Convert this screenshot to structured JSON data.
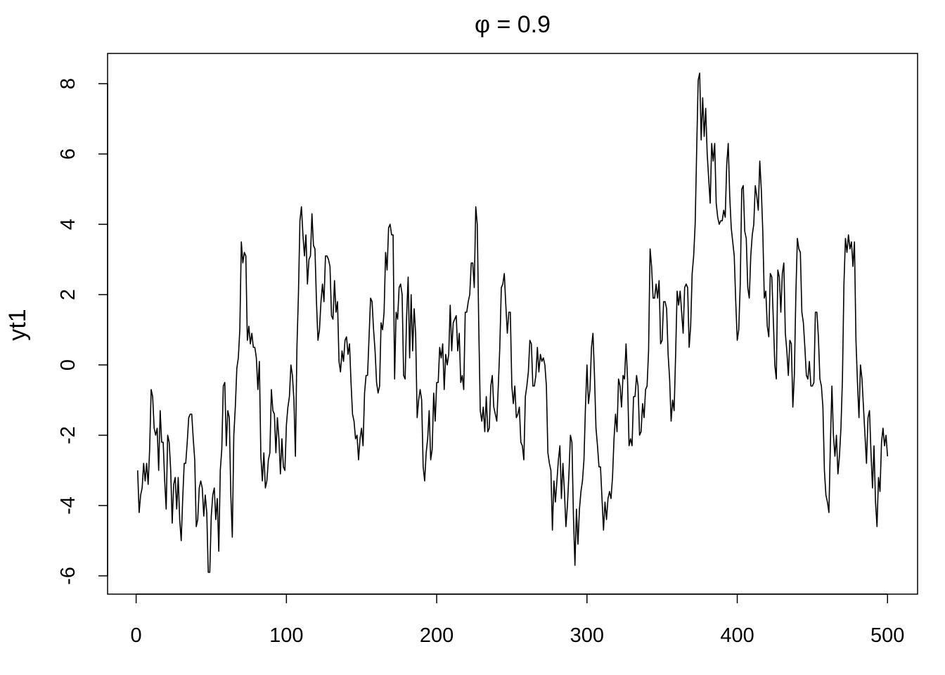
{
  "chart_data": {
    "type": "line",
    "title": "φ = 0.9",
    "y_label": "yt1",
    "color": "#000000",
    "xlim": [
      -19,
      520
    ],
    "ylim": [
      -6.52,
      8.86
    ],
    "xticks": [
      0,
      100,
      200,
      300,
      400,
      500
    ],
    "yticks": [
      -6,
      -4,
      -2,
      0,
      2,
      4,
      6,
      8
    ],
    "x": [
      1,
      2,
      3,
      4,
      5,
      6,
      7,
      8,
      9,
      10,
      11,
      12,
      13,
      14,
      15,
      16,
      17,
      18,
      19,
      20,
      21,
      22,
      23,
      24,
      25,
      26,
      27,
      28,
      29,
      30,
      31,
      32,
      33,
      34,
      35,
      36,
      37,
      38,
      39,
      40,
      41,
      42,
      43,
      44,
      45,
      46,
      47,
      48,
      49,
      50,
      51,
      52,
      53,
      54,
      55,
      56,
      57,
      58,
      59,
      60,
      61,
      62,
      63,
      64,
      65,
      66,
      67,
      68,
      69,
      70,
      71,
      72,
      73,
      74,
      75,
      76,
      77,
      78,
      79,
      80,
      81,
      82,
      83,
      84,
      85,
      86,
      87,
      88,
      89,
      90,
      91,
      92,
      93,
      94,
      95,
      96,
      97,
      98,
      99,
      100,
      101,
      102,
      103,
      104,
      105,
      106,
      107,
      108,
      109,
      110,
      111,
      112,
      113,
      114,
      115,
      116,
      117,
      118,
      119,
      120,
      121,
      122,
      123,
      124,
      125,
      126,
      127,
      128,
      129,
      130,
      131,
      132,
      133,
      134,
      135,
      136,
      137,
      138,
      139,
      140,
      141,
      142,
      143,
      144,
      145,
      146,
      147,
      148,
      149,
      150,
      151,
      152,
      153,
      154,
      155,
      156,
      157,
      158,
      159,
      160,
      161,
      162,
      163,
      164,
      165,
      166,
      167,
      168,
      169,
      170,
      171,
      172,
      173,
      174,
      175,
      176,
      177,
      178,
      179,
      180,
      181,
      182,
      183,
      184,
      185,
      186,
      187,
      188,
      189,
      190,
      191,
      192,
      193,
      194,
      195,
      196,
      197,
      198,
      199,
      200,
      201,
      202,
      203,
      204,
      205,
      206,
      207,
      208,
      209,
      210,
      211,
      212,
      213,
      214,
      215,
      216,
      217,
      218,
      219,
      220,
      221,
      222,
      223,
      224,
      225,
      226,
      227,
      228,
      229,
      230,
      231,
      232,
      233,
      234,
      235,
      236,
      237,
      238,
      239,
      240,
      241,
      242,
      243,
      244,
      245,
      246,
      247,
      248,
      249,
      250,
      251,
      252,
      253,
      254,
      255,
      256,
      257,
      258,
      259,
      260,
      261,
      262,
      263,
      264,
      265,
      266,
      267,
      268,
      269,
      270,
      271,
      272,
      273,
      274,
      275,
      276,
      277,
      278,
      279,
      280,
      281,
      282,
      283,
      284,
      285,
      286,
      287,
      288,
      289,
      290,
      291,
      292,
      293,
      294,
      295,
      296,
      297,
      298,
      299,
      300,
      301,
      302,
      303,
      304,
      305,
      306,
      307,
      308,
      309,
      310,
      311,
      312,
      313,
      314,
      315,
      316,
      317,
      318,
      319,
      320,
      321,
      322,
      323,
      324,
      325,
      326,
      327,
      328,
      329,
      330,
      331,
      332,
      333,
      334,
      335,
      336,
      337,
      338,
      339,
      340,
      341,
      342,
      343,
      344,
      345,
      346,
      347,
      348,
      349,
      350,
      351,
      352,
      353,
      354,
      355,
      356,
      357,
      358,
      359,
      360,
      361,
      362,
      363,
      364,
      365,
      366,
      367,
      368,
      369,
      370,
      371,
      372,
      373,
      374,
      375,
      376,
      377,
      378,
      379,
      380,
      381,
      382,
      383,
      384,
      385,
      386,
      387,
      388,
      389,
      390,
      391,
      392,
      393,
      394,
      395,
      396,
      397,
      398,
      399,
      400,
      401,
      402,
      403,
      404,
      405,
      406,
      407,
      408,
      409,
      410,
      411,
      412,
      413,
      414,
      415,
      416,
      417,
      418,
      419,
      420,
      421,
      422,
      423,
      424,
      425,
      426,
      427,
      428,
      429,
      430,
      431,
      432,
      433,
      434,
      435,
      436,
      437,
      438,
      439,
      440,
      441,
      442,
      443,
      444,
      445,
      446,
      447,
      448,
      449,
      450,
      451,
      452,
      453,
      454,
      455,
      456,
      457,
      458,
      459,
      460,
      461,
      462,
      463,
      464,
      465,
      466,
      467,
      468,
      469,
      470,
      471,
      472,
      473,
      474,
      475,
      476,
      477,
      478,
      479,
      480,
      481,
      482,
      483,
      484,
      485,
      486,
      487,
      488,
      489,
      490,
      491,
      492,
      493,
      494,
      495,
      496,
      497,
      498,
      499,
      500
    ],
    "values": [
      -3.0,
      -4.2,
      -3.7,
      -3.5,
      -2.8,
      -3.3,
      -2.8,
      -3.4,
      -2.4,
      -0.7,
      -0.9,
      -1.8,
      -2.0,
      -1.8,
      -3.0,
      -1.3,
      -2.2,
      -2.2,
      -3.3,
      -4.1,
      -2.0,
      -2.2,
      -3.0,
      -4.5,
      -3.4,
      -3.2,
      -4.1,
      -3.2,
      -4.4,
      -5.0,
      -3.8,
      -2.8,
      -2.8,
      -2.2,
      -1.5,
      -1.4,
      -1.4,
      -2.1,
      -2.7,
      -4.6,
      -4.4,
      -3.5,
      -3.3,
      -3.5,
      -4.3,
      -3.7,
      -4.2,
      -5.9,
      -5.9,
      -4.3,
      -3.7,
      -3.5,
      -4.4,
      -3.8,
      -5.3,
      -3.0,
      -2.4,
      -0.6,
      -0.5,
      -2.3,
      -1.3,
      -1.5,
      -3.7,
      -4.9,
      -2.0,
      -1.2,
      -0.1,
      0.2,
      1.0,
      3.5,
      2.9,
      3.2,
      3.1,
      0.7,
      1.1,
      0.6,
      0.9,
      0.5,
      0.5,
      0.2,
      -0.7,
      0.1,
      -2.6,
      -3.3,
      -2.5,
      -3.5,
      -3.3,
      -2.7,
      -2.5,
      -0.7,
      -1.3,
      -1.4,
      -2.5,
      -1.5,
      -2.1,
      -3.1,
      -2.1,
      -2.9,
      -3.0,
      -1.7,
      -1.2,
      -0.9,
      0.0,
      -0.3,
      -1.0,
      -2.6,
      0.5,
      2.0,
      4.1,
      4.5,
      3.7,
      3.1,
      3.7,
      2.3,
      3.0,
      3.1,
      4.3,
      3.4,
      3.3,
      1.8,
      0.7,
      1.0,
      1.8,
      2.3,
      1.8,
      3.1,
      3.1,
      3.0,
      2.8,
      1.4,
      1.3,
      2.4,
      1.5,
      1.8,
      0.1,
      -0.2,
      0.4,
      0.1,
      0.7,
      0.8,
      0.3,
      0.6,
      -0.5,
      -1.4,
      -1.6,
      -2.1,
      -2.0,
      -2.7,
      -2.1,
      -1.8,
      -2.3,
      -0.8,
      -0.3,
      -0.3,
      0.8,
      1.9,
      1.8,
      1.0,
      0.4,
      -0.5,
      -0.8,
      -0.6,
      1.2,
      1.0,
      1.5,
      3.2,
      2.7,
      3.9,
      4.0,
      3.7,
      3.7,
      -0.4,
      1.5,
      1.3,
      2.2,
      2.3,
      2.0,
      -0.3,
      -0.4,
      1.4,
      2.5,
      0.2,
      2.0,
      0.4,
      1.6,
      0.9,
      -1.5,
      -1.0,
      -0.7,
      -1.0,
      -2.9,
      -3.3,
      -2.5,
      -2.1,
      -1.3,
      -2.7,
      -2.4,
      -0.8,
      -1.6,
      -0.5,
      -0.5,
      0.5,
      0.2,
      0.6,
      -0.7,
      0.3,
      0.0,
      0.3,
      1.7,
      0.4,
      1.2,
      1.3,
      1.4,
      0.4,
      0.9,
      -0.5,
      -0.3,
      -0.7,
      1.5,
      1.5,
      1.8,
      2.0,
      2.9,
      2.9,
      2.2,
      4.5,
      4.0,
      1.1,
      -1.3,
      -1.6,
      -1.2,
      -1.9,
      -0.9,
      -1.9,
      -1.8,
      -0.6,
      -0.3,
      -1.2,
      -1.4,
      -1.6,
      -0.6,
      0.5,
      2.2,
      2.3,
      2.6,
      1.7,
      0.9,
      1.5,
      1.5,
      -0.6,
      -1.1,
      -0.6,
      -1.5,
      -1.4,
      -1.2,
      -2.2,
      -2.3,
      -2.7,
      -0.9,
      -0.6,
      -0.2,
      0.7,
      0.6,
      -0.6,
      -0.6,
      -0.3,
      0.5,
      -0.2,
      0.3,
      0.1,
      0.2,
      0.0,
      -0.6,
      -2.5,
      -2.8,
      -3.0,
      -4.7,
      -3.3,
      -3.9,
      -3.3,
      -2.7,
      -2.3,
      -3.8,
      -2.8,
      -3.6,
      -4.6,
      -4.0,
      -3.1,
      -2.0,
      -2.2,
      -4.3,
      -5.7,
      -4.1,
      -5.1,
      -4.1,
      -3.6,
      -3.3,
      -2.7,
      -1.2,
      0.0,
      -1.1,
      -0.7,
      0.5,
      0.9,
      -0.3,
      -1.8,
      -2.3,
      -2.9,
      -2.9,
      -3.8,
      -4.7,
      -3.9,
      -4.4,
      -3.8,
      -3.6,
      -3.8,
      -3.2,
      -2.1,
      -1.4,
      -1.9,
      -0.4,
      -0.6,
      -1.2,
      -0.3,
      -0.4,
      0.6,
      -0.4,
      -2.3,
      -2.1,
      -2.3,
      -0.9,
      -0.9,
      -0.3,
      -0.6,
      -2.0,
      -1.9,
      -1.1,
      -1.5,
      -0.7,
      -0.6,
      0.4,
      3.3,
      2.8,
      1.9,
      1.9,
      2.3,
      1.9,
      2.4,
      0.6,
      0.7,
      1.8,
      1.8,
      1.6,
      0.3,
      -0.4,
      -1.6,
      -1.0,
      -1.3,
      0.3,
      2.1,
      1.7,
      2.1,
      1.5,
      0.9,
      2.2,
      2.3,
      2.2,
      0.5,
      1.1,
      2.6,
      3.1,
      4.0,
      6.1,
      8.1,
      8.3,
      6.4,
      7.6,
      6.5,
      7.3,
      6.0,
      5.3,
      4.6,
      6.3,
      5.8,
      6.3,
      4.6,
      4.2,
      4.0,
      4.1,
      4.1,
      4.4,
      4.2,
      5.7,
      6.3,
      4.8,
      3.9,
      3.5,
      3.1,
      1.8,
      0.7,
      1.0,
      2.3,
      5.0,
      5.1,
      3.8,
      3.6,
      2.2,
      1.9,
      3.1,
      3.7,
      4.0,
      5.1,
      4.8,
      4.4,
      5.8,
      5.0,
      3.8,
      1.9,
      2.1,
      1.1,
      0.8,
      2.6,
      2.5,
      1.3,
      0.0,
      -0.4,
      2.7,
      2.5,
      1.5,
      2.6,
      2.9,
      0.9,
      0.4,
      -0.3,
      0.7,
      0.6,
      -1.2,
      -0.3,
      2.0,
      3.6,
      3.3,
      3.2,
      1.5,
      1.2,
      0.5,
      -0.3,
      -0.4,
      0.1,
      -0.6,
      -0.6,
      -0.5,
      1.5,
      1.5,
      0.8,
      -0.4,
      -0.6,
      -1.2,
      -3.0,
      -3.7,
      -3.9,
      -4.2,
      -2.2,
      -0.6,
      -2.0,
      -2.6,
      -2.0,
      -3.1,
      -2.6,
      -1.8,
      -0.4,
      2.3,
      3.6,
      3.2,
      3.7,
      3.3,
      3.5,
      2.8,
      3.5,
      0.7,
      -0.5,
      -1.5,
      0.0,
      -0.4,
      -1.2,
      -2.0,
      -2.8,
      -1.5,
      -1.3,
      -2.5,
      -3.5,
      -2.3,
      -3.9,
      -4.6,
      -3.2,
      -3.6,
      -2.2,
      -1.8,
      -2.3,
      -2.0,
      -2.6
    ]
  }
}
